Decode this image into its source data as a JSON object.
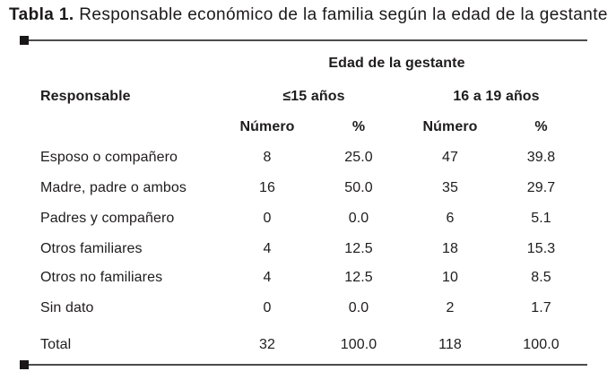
{
  "caption": {
    "label": "Tabla 1.",
    "text": " Responsable económico de la familia según la edad de la gestante"
  },
  "table": {
    "group_header": "Edad de la gestante",
    "row_header": "Responsable",
    "age_groups": [
      {
        "label": "≤15 años"
      },
      {
        "label": "16 a 19 años"
      }
    ],
    "columns": [
      "Número",
      "%",
      "Número",
      "%"
    ],
    "rows": [
      {
        "label": "Esposo o compañero",
        "values": [
          "8",
          "25.0",
          "47",
          "39.8"
        ]
      },
      {
        "label": "Madre, padre o ambos",
        "values": [
          "16",
          "50.0",
          "35",
          "29.7"
        ]
      },
      {
        "label": "Padres y compañero",
        "values": [
          "0",
          "0.0",
          "6",
          "5.1"
        ]
      },
      {
        "label": "Otros familiares",
        "values": [
          "4",
          "12.5",
          "18",
          "15.3"
        ]
      },
      {
        "label": "Otros no familiares",
        "values": [
          "4",
          "12.5",
          "10",
          "8.5"
        ]
      },
      {
        "label": "Sin dato",
        "values": [
          "0",
          "0.0",
          "2",
          "1.7"
        ]
      },
      {
        "label": "Total",
        "values": [
          "32",
          "100.0",
          "118",
          "100.0"
        ]
      }
    ],
    "colors": {
      "text": "#1f1c1d",
      "rule_line": "#4c4c4e",
      "rule_square": "#1a1718",
      "background": "#ffffff"
    }
  }
}
